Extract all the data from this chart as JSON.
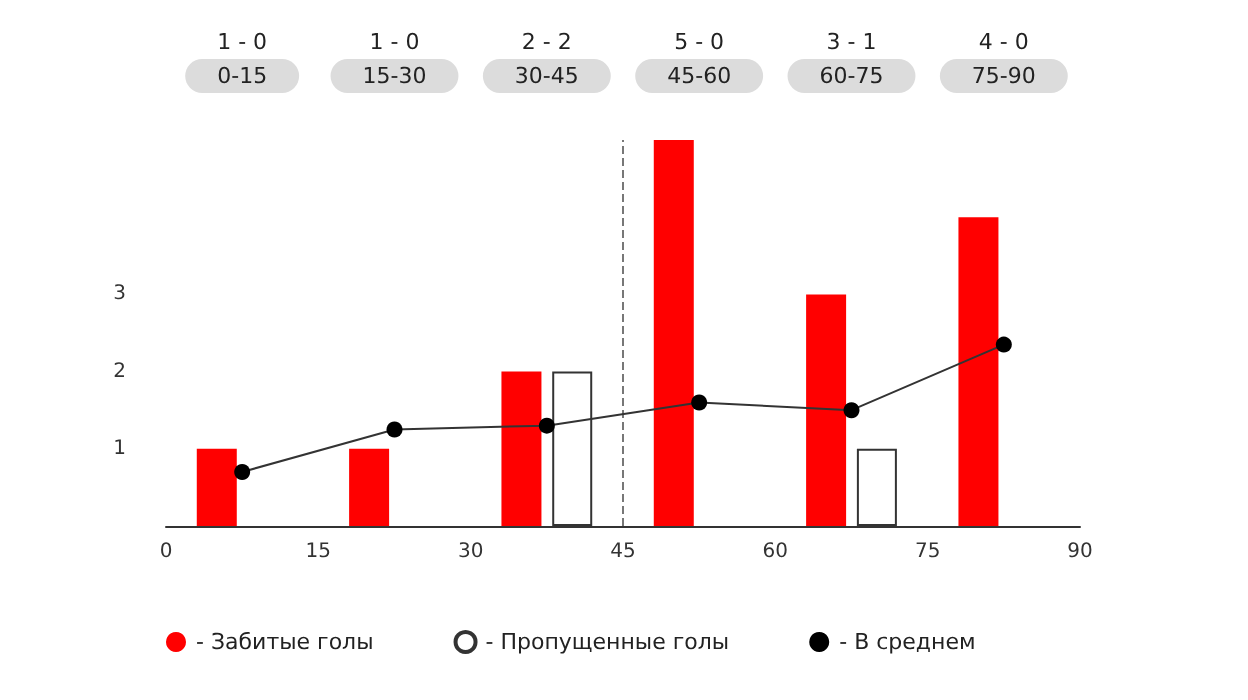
{
  "chart_data": {
    "type": "bar",
    "xlim": [
      0,
      90
    ],
    "xticks": [
      0,
      15,
      30,
      45,
      60,
      75,
      90
    ],
    "ylim": [
      0,
      5
    ],
    "yticks": [
      1,
      2,
      3
    ],
    "legend": "bottom left",
    "marker": "circle",
    "annotations": [
      "1 - 0",
      "0-15",
      "1 - 0",
      "15-30",
      "2 - 2",
      "30-45",
      "5 - 0",
      "45-60",
      "3 - 1",
      "60-75",
      "4 - 0",
      "75-90"
    ],
    "ref_lines": [
      {
        "axis": "x",
        "value": 45,
        "color": "#777777",
        "line_style": "dashed"
      }
    ],
    "series": [
      {
        "name": "- Забитые голы",
        "color": "#ff0000",
        "x": [
          5,
          20,
          35,
          50,
          65,
          80
        ],
        "values": [
          1,
          1,
          2,
          5,
          3,
          4
        ]
      },
      {
        "name": "- Пропущенные голы",
        "color": "#ffffff",
        "x": [
          40,
          70
        ],
        "values": [
          2,
          1
        ]
      },
      {
        "name": "- В среднем",
        "type": "line",
        "color": "#000000",
        "x": [
          7.5,
          22.5,
          37.5,
          52.5,
          67.5,
          82.5
        ],
        "values": [
          0.7,
          1.25,
          1.3,
          1.6,
          1.5,
          2.35
        ]
      }
    ]
  }
}
